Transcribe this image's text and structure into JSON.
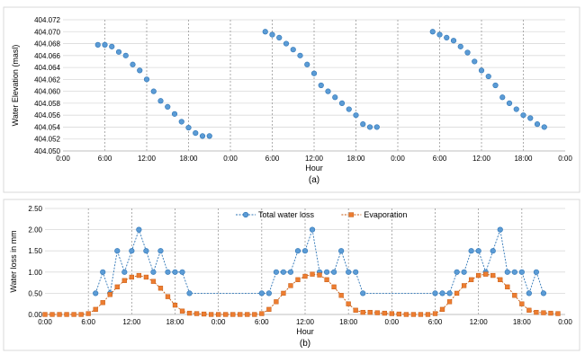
{
  "chart_data": [
    {
      "type": "scatter",
      "panel_label": "(a)",
      "xlabel": "Hour",
      "ylabel": "Water Elevation (masl)",
      "xlim": [
        0,
        72
      ],
      "ylim": [
        404.05,
        404.072
      ],
      "x_ticks": [
        0,
        6,
        12,
        18,
        24,
        30,
        36,
        42,
        48,
        54,
        60,
        66,
        72
      ],
      "x_tick_labels": [
        "0:00",
        "6:00",
        "12:00",
        "18:00",
        "0:00",
        "6:00",
        "12:00",
        "18:00",
        "0:00",
        "6:00",
        "12:00",
        "18:00",
        "0:00"
      ],
      "y_ticks": [
        404.05,
        404.052,
        404.054,
        404.056,
        404.058,
        404.06,
        404.062,
        404.064,
        404.066,
        404.068,
        404.07,
        404.072
      ],
      "y_tick_labels": [
        "404.050",
        "404.052",
        "404.054",
        "404.056",
        "404.058",
        "404.060",
        "404.062",
        "404.064",
        "404.066",
        "404.068",
        "404.070",
        "404.072"
      ],
      "vertical_gridlines": [
        6,
        12,
        18,
        24,
        30,
        36,
        42,
        48,
        54,
        60,
        66
      ],
      "grid": true,
      "series": [
        {
          "color": "#5b9bd5",
          "marker": "circle",
          "points": [
            [
              5,
              404.0678
            ],
            [
              6,
              404.0678
            ],
            [
              7,
              404.0675
            ],
            [
              8,
              404.0666
            ],
            [
              9,
              404.066
            ],
            [
              10,
              404.0645
            ],
            [
              11,
              404.0635
            ],
            [
              12,
              404.062
            ],
            [
              13,
              404.06
            ],
            [
              14,
              404.0584
            ],
            [
              15,
              404.0574
            ],
            [
              16,
              404.0562
            ],
            [
              17,
              404.0549
            ],
            [
              18,
              404.0539
            ],
            [
              19,
              404.053
            ],
            [
              20,
              404.0525
            ],
            [
              21,
              404.0525
            ],
            [
              29,
              404.07
            ],
            [
              30,
              404.0695
            ],
            [
              31,
              404.069
            ],
            [
              32,
              404.068
            ],
            [
              33,
              404.067
            ],
            [
              34,
              404.066
            ],
            [
              35,
              404.0645
            ],
            [
              36,
              404.063
            ],
            [
              37,
              404.061
            ],
            [
              38,
              404.06
            ],
            [
              39,
              404.059
            ],
            [
              40,
              404.058
            ],
            [
              41,
              404.057
            ],
            [
              42,
              404.056
            ],
            [
              43,
              404.0545
            ],
            [
              44,
              404.054
            ],
            [
              45,
              404.054
            ],
            [
              53,
              404.07
            ],
            [
              54,
              404.0695
            ],
            [
              55,
              404.069
            ],
            [
              56,
              404.0685
            ],
            [
              57,
              404.0675
            ],
            [
              58,
              404.0665
            ],
            [
              59,
              404.065
            ],
            [
              60,
              404.0635
            ],
            [
              61,
              404.0625
            ],
            [
              62,
              404.061
            ],
            [
              63,
              404.059
            ],
            [
              64,
              404.058
            ],
            [
              65,
              404.057
            ],
            [
              66,
              404.056
            ],
            [
              67,
              404.0555
            ],
            [
              68,
              404.0545
            ],
            [
              69,
              404.054
            ]
          ]
        }
      ]
    },
    {
      "type": "line",
      "panel_label": "(b)",
      "xlabel": "Hour",
      "ylabel": "Water loss in mm",
      "xlim": [
        0,
        72
      ],
      "ylim": [
        0,
        2.5
      ],
      "x_ticks": [
        0,
        6,
        12,
        18,
        24,
        30,
        36,
        42,
        48,
        54,
        60,
        66,
        72
      ],
      "x_tick_labels": [
        "0:00",
        "6:00",
        "12:00",
        "18:00",
        "0:00",
        "6:00",
        "12:00",
        "18:00",
        "0:00",
        "6:00",
        "12:00",
        "18:00",
        "0:00"
      ],
      "y_ticks": [
        0,
        0.5,
        1.0,
        1.5,
        2.0,
        2.5
      ],
      "y_tick_labels": [
        "0.00",
        "0.50",
        "1.00",
        "1.50",
        "2.00",
        "2.50"
      ],
      "vertical_gridlines": [
        6,
        12,
        18,
        24,
        30,
        36,
        42,
        48,
        54,
        60,
        66
      ],
      "grid": true,
      "legend": "top-center",
      "series": [
        {
          "name": "Total water loss",
          "color": "#5b9bd5",
          "marker": "circle",
          "line": "dashed",
          "points": [
            [
              7,
              0.5
            ],
            [
              8,
              1.0
            ],
            [
              9,
              0.5
            ],
            [
              10,
              1.5
            ],
            [
              11,
              1.0
            ],
            [
              12,
              1.5
            ],
            [
              13,
              2.0
            ],
            [
              14,
              1.5
            ],
            [
              15,
              1.0
            ],
            [
              16,
              1.5
            ],
            [
              17,
              1.0
            ],
            [
              18,
              1.0
            ],
            [
              19,
              1.0
            ],
            [
              20,
              0.5
            ],
            [
              30,
              0.5
            ],
            [
              31,
              0.5
            ],
            [
              32,
              1.0
            ],
            [
              33,
              1.0
            ],
            [
              34,
              1.0
            ],
            [
              35,
              1.5
            ],
            [
              36,
              1.5
            ],
            [
              37,
              2.0
            ],
            [
              38,
              1.0
            ],
            [
              39,
              1.0
            ],
            [
              40,
              1.0
            ],
            [
              41,
              1.5
            ],
            [
              42,
              1.0
            ],
            [
              43,
              1.0
            ],
            [
              44,
              0.5
            ],
            [
              54,
              0.5
            ],
            [
              55,
              0.5
            ],
            [
              56,
              0.5
            ],
            [
              57,
              1.0
            ],
            [
              58,
              1.0
            ],
            [
              59,
              1.5
            ],
            [
              60,
              1.5
            ],
            [
              61,
              1.0
            ],
            [
              62,
              1.5
            ],
            [
              63,
              2.0
            ],
            [
              64,
              1.0
            ],
            [
              65,
              1.0
            ],
            [
              66,
              1.0
            ],
            [
              67,
              0.5
            ],
            [
              68,
              1.0
            ],
            [
              69,
              0.5
            ]
          ]
        },
        {
          "name": "Evaporation",
          "color": "#ed7d31",
          "marker": "square",
          "line": "dashed",
          "points": [
            [
              0,
              0.0
            ],
            [
              1,
              0.0
            ],
            [
              2,
              0.0
            ],
            [
              3,
              0.0
            ],
            [
              4,
              0.0
            ],
            [
              5,
              0.0
            ],
            [
              6,
              0.02
            ],
            [
              7,
              0.12
            ],
            [
              8,
              0.28
            ],
            [
              9,
              0.47
            ],
            [
              10,
              0.65
            ],
            [
              11,
              0.8
            ],
            [
              12,
              0.88
            ],
            [
              13,
              0.92
            ],
            [
              14,
              0.88
            ],
            [
              15,
              0.78
            ],
            [
              16,
              0.62
            ],
            [
              17,
              0.42
            ],
            [
              18,
              0.22
            ],
            [
              19,
              0.08
            ],
            [
              20,
              0.03
            ],
            [
              21,
              0.02
            ],
            [
              22,
              0.01
            ],
            [
              23,
              0.0
            ],
            [
              24,
              0.0
            ],
            [
              25,
              0.0
            ],
            [
              26,
              0.0
            ],
            [
              27,
              0.0
            ],
            [
              28,
              0.0
            ],
            [
              29,
              0.0
            ],
            [
              30,
              0.02
            ],
            [
              31,
              0.12
            ],
            [
              32,
              0.3
            ],
            [
              33,
              0.5
            ],
            [
              34,
              0.68
            ],
            [
              35,
              0.82
            ],
            [
              36,
              0.9
            ],
            [
              37,
              0.95
            ],
            [
              38,
              0.93
            ],
            [
              39,
              0.82
            ],
            [
              40,
              0.65
            ],
            [
              41,
              0.45
            ],
            [
              42,
              0.25
            ],
            [
              43,
              0.1
            ],
            [
              44,
              0.05
            ],
            [
              45,
              0.05
            ],
            [
              46,
              0.04
            ],
            [
              47,
              0.03
            ],
            [
              48,
              0.02
            ],
            [
              49,
              0.01
            ],
            [
              50,
              0.0
            ],
            [
              51,
              0.0
            ],
            [
              52,
              0.0
            ],
            [
              53,
              0.0
            ],
            [
              54,
              0.02
            ],
            [
              55,
              0.12
            ],
            [
              56,
              0.3
            ],
            [
              57,
              0.5
            ],
            [
              58,
              0.68
            ],
            [
              59,
              0.82
            ],
            [
              60,
              0.92
            ],
            [
              61,
              0.95
            ],
            [
              62,
              0.92
            ],
            [
              63,
              0.82
            ],
            [
              64,
              0.65
            ],
            [
              65,
              0.45
            ],
            [
              66,
              0.25
            ],
            [
              67,
              0.1
            ],
            [
              68,
              0.05
            ],
            [
              69,
              0.04
            ],
            [
              70,
              0.03
            ],
            [
              71,
              0.02
            ]
          ]
        }
      ]
    }
  ]
}
